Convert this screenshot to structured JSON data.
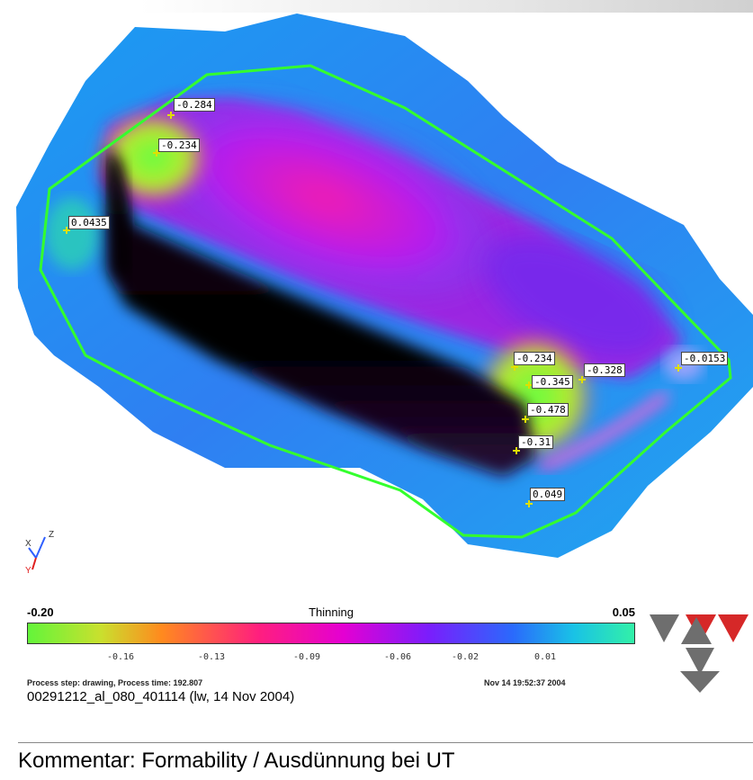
{
  "probes": [
    {
      "value": "-0.284"
    },
    {
      "value": "-0.234"
    },
    {
      "value": "0.0435"
    },
    {
      "value": "-0.234"
    },
    {
      "value": "-0.345"
    },
    {
      "value": "-0.328"
    },
    {
      "value": "-0.478"
    },
    {
      "value": "-0.31"
    },
    {
      "value": "0.049"
    },
    {
      "value": "-0.0153"
    }
  ],
  "axis_triad": {
    "z_label": "Z",
    "x_label": "X",
    "y_label": "Y"
  },
  "legend": {
    "title": "Thinning",
    "min_label": "-0.20",
    "max_label": "0.05",
    "ticks": [
      "-0.16",
      "-0.13",
      "-0.09",
      "-0.06",
      "-0.02",
      "0.01"
    ],
    "colors": [
      "#63f53a",
      "#ff8a1e",
      "#ff1f7e",
      "#e400d2",
      "#7b1dfc",
      "#2a6afc",
      "#32f0a8"
    ]
  },
  "process_line": "Process step: drawing, Process time: 192.807",
  "timestamp": "Nov 14 19:52:37 2004",
  "file_id": "00291212_al_080_401114 (lw, 14 Nov 2004)",
  "comment": "Kommentar: Formability / Ausdünnung bei UT",
  "logo": {
    "name": "company logo",
    "colors": [
      "#d62828",
      "#6e6e6e"
    ]
  }
}
